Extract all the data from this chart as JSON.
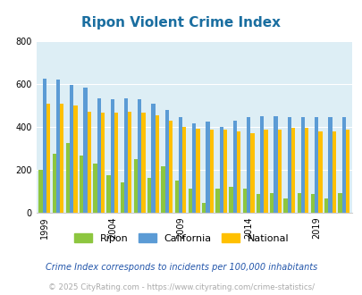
{
  "title": "Ripon Violent Crime Index",
  "years": [
    1999,
    2000,
    2001,
    2002,
    2003,
    2004,
    2005,
    2006,
    2007,
    2008,
    2009,
    2010,
    2011,
    2012,
    2013,
    2014,
    2015,
    2016,
    2017,
    2018,
    2019,
    2020,
    2021
  ],
  "ripon": [
    200,
    275,
    325,
    265,
    230,
    175,
    140,
    250,
    160,
    215,
    150,
    110,
    45,
    110,
    120,
    110,
    85,
    90,
    65,
    90,
    85,
    65,
    90
  ],
  "california": [
    625,
    620,
    595,
    585,
    535,
    530,
    535,
    530,
    510,
    480,
    445,
    415,
    425,
    400,
    430,
    445,
    450,
    450,
    445,
    445,
    445,
    445,
    445
  ],
  "national": [
    510,
    510,
    500,
    470,
    465,
    465,
    470,
    465,
    455,
    430,
    400,
    390,
    385,
    385,
    380,
    370,
    385,
    385,
    395,
    395,
    380,
    380,
    385
  ],
  "bar_colors": {
    "ripon": "#8dc63f",
    "california": "#5b9bd5",
    "national": "#ffc000"
  },
  "bg_color": "#ddeef5",
  "ylim": [
    0,
    800
  ],
  "yticks": [
    0,
    200,
    400,
    600,
    800
  ],
  "xlabel_ticks": [
    1999,
    2004,
    2009,
    2014,
    2019
  ],
  "legend_labels": [
    "Ripon",
    "California",
    "National"
  ],
  "footnote1": "Crime Index corresponds to incidents per 100,000 inhabitants",
  "footnote2": "© 2025 CityRating.com - https://www.cityrating.com/crime-statistics/",
  "title_color": "#1a6ea0",
  "footnote1_color": "#2255aa",
  "footnote2_color": "#aaaaaa",
  "grid_color": "#ffffff",
  "bar_width": 0.28
}
